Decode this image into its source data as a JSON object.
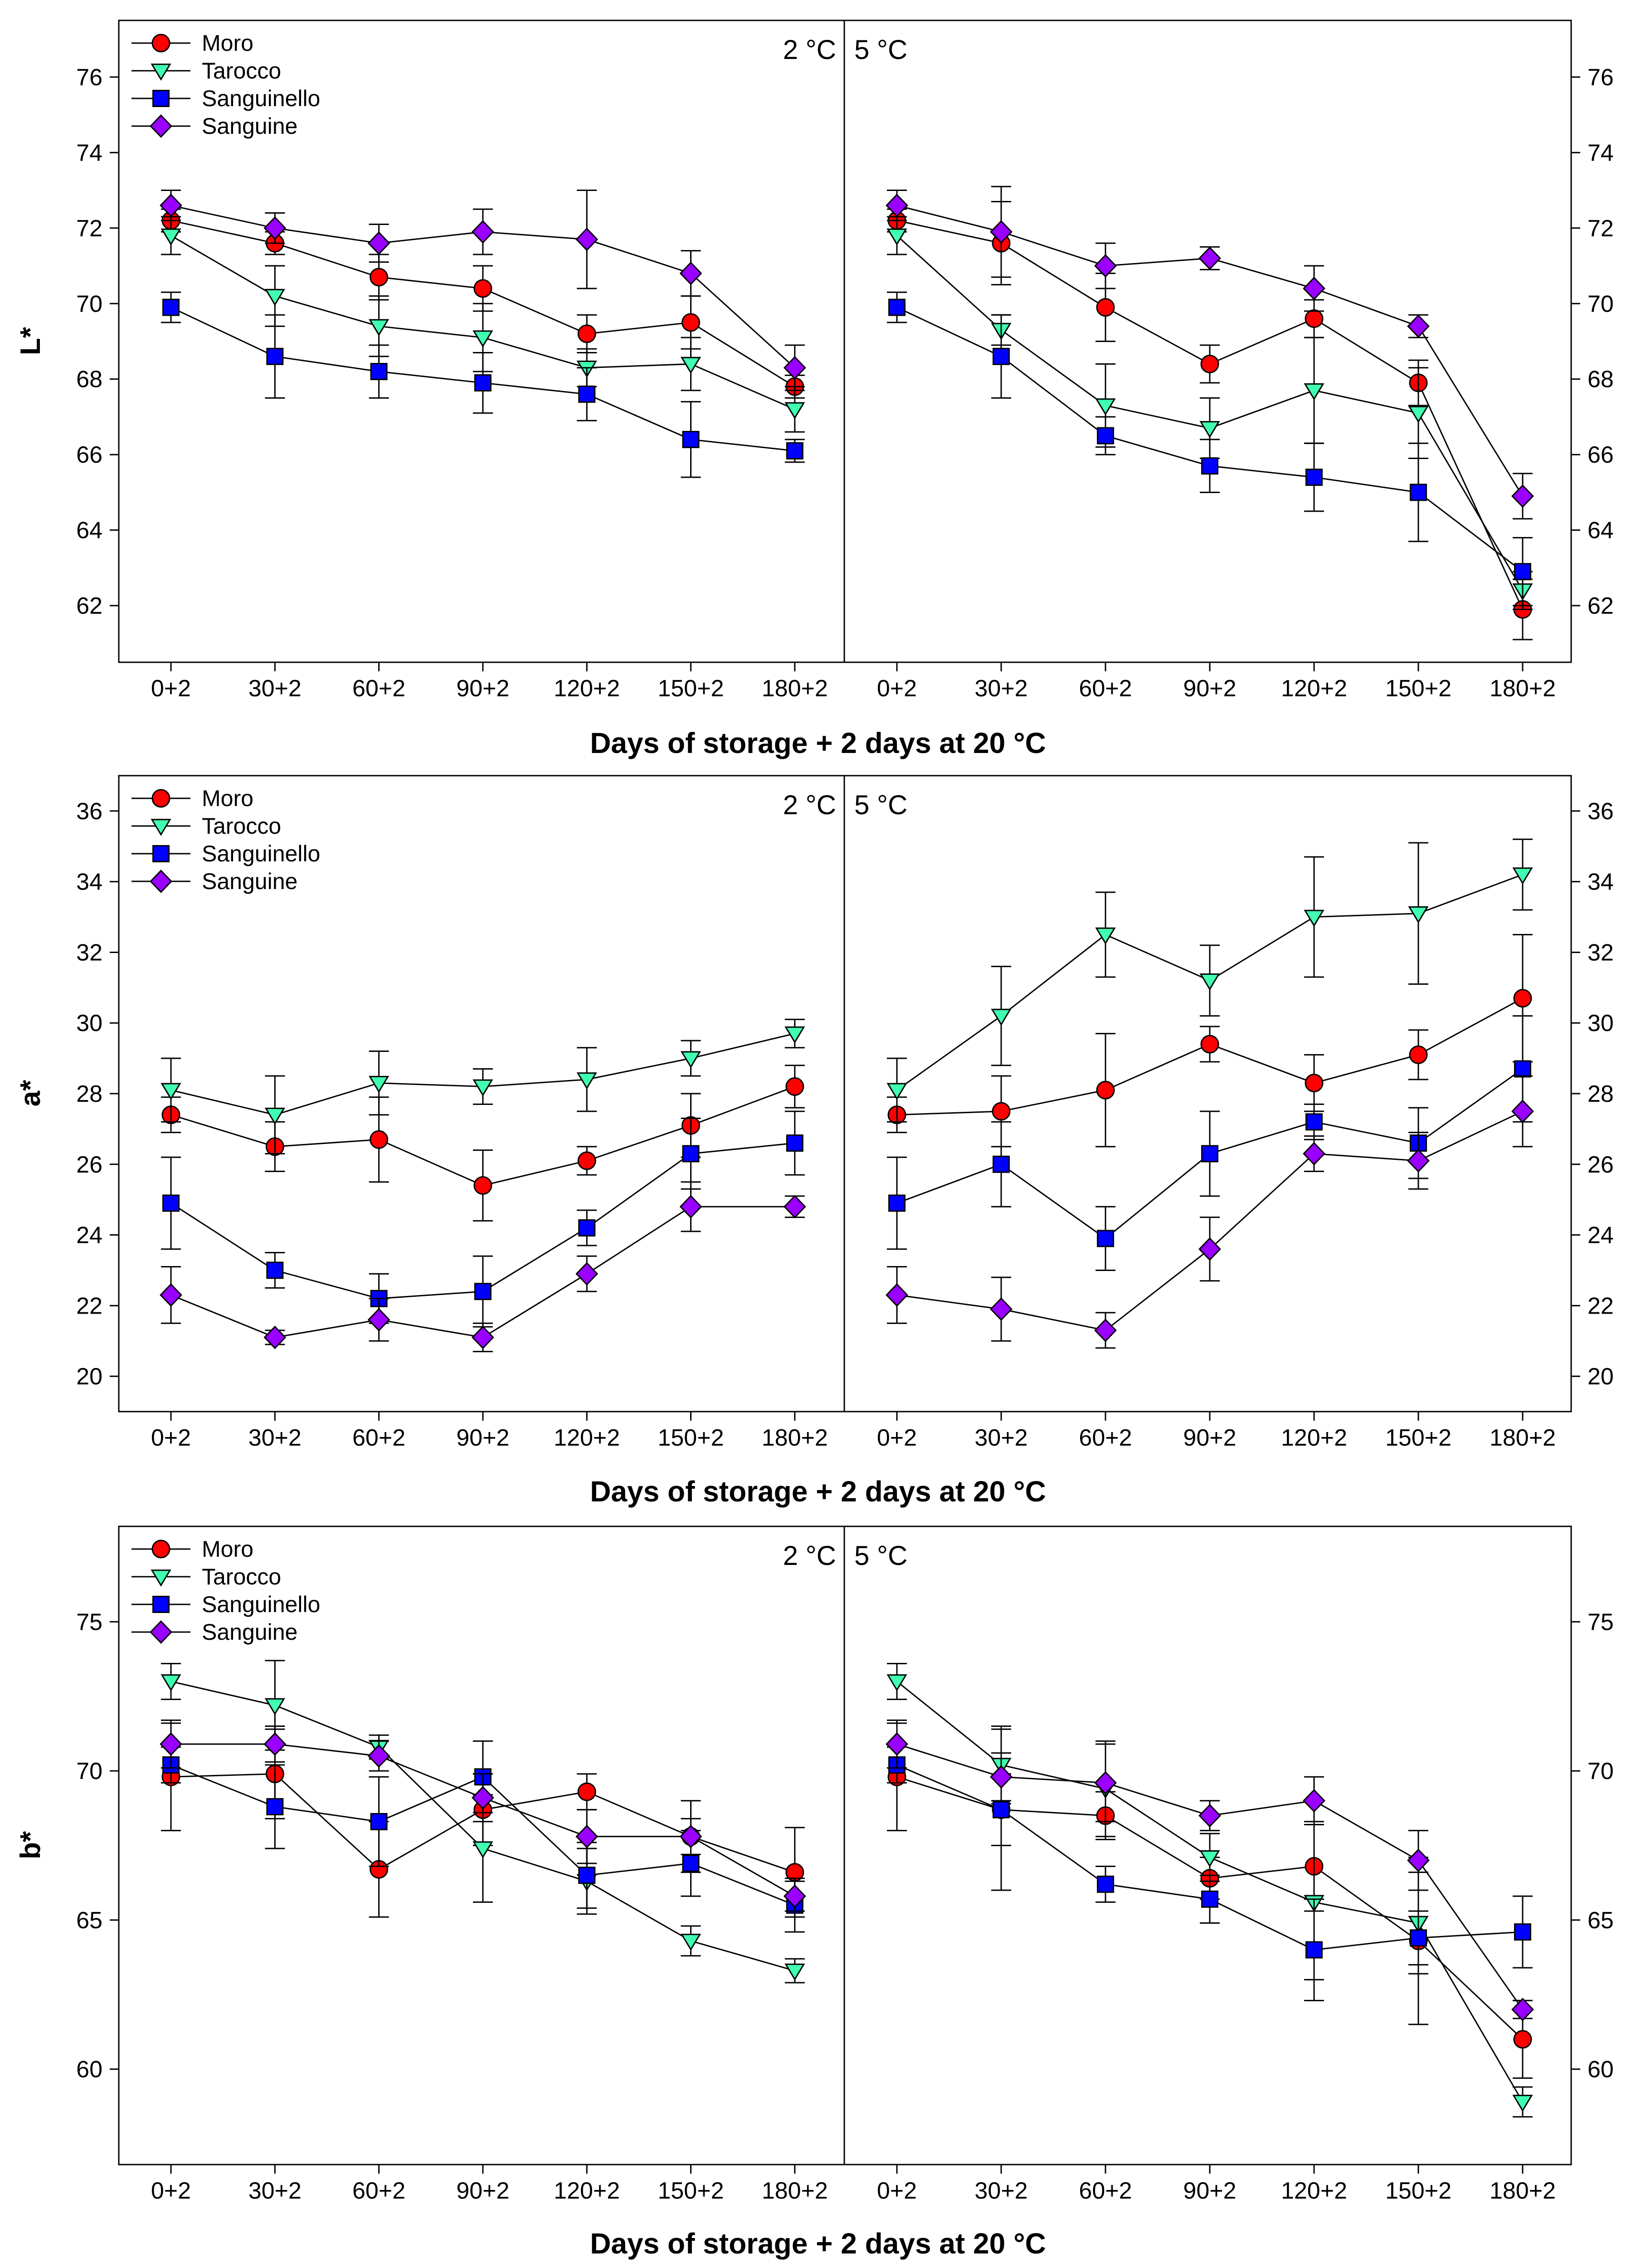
{
  "chart_data": [
    {
      "type": "line",
      "id": "L",
      "ylabel": "L*",
      "xlabel": "Days of storage + 2 days at 20 °C",
      "categories": [
        "0+2",
        "30+2",
        "60+2",
        "90+2",
        "120+2",
        "150+2",
        "180+2"
      ],
      "ylim": [
        60.5,
        77.5
      ],
      "yticks": [
        62,
        64,
        66,
        68,
        70,
        72,
        74,
        76
      ],
      "ytick_labels": [
        "62",
        "64",
        "66",
        "68",
        "70",
        "72",
        "74",
        "76"
      ],
      "panels": [
        {
          "label": "2 °C",
          "series": [
            {
              "name": "Moro",
              "values": [
                72.2,
                71.6,
                70.7,
                70.4,
                69.2,
                69.5,
                67.8
              ],
              "err": [
                0.3,
                0.3,
                0.6,
                0.6,
                0.5,
                0.7,
                0.3
              ]
            },
            {
              "name": "Tarocco",
              "values": [
                71.8,
                70.2,
                69.4,
                69.1,
                68.3,
                68.4,
                67.2
              ],
              "err": [
                0.5,
                0.8,
                0.8,
                0.9,
                0.5,
                0.7,
                0.6
              ]
            },
            {
              "name": "Sanguinello",
              "values": [
                69.9,
                68.6,
                68.2,
                67.9,
                67.6,
                66.4,
                66.1
              ],
              "err": [
                0.4,
                1.1,
                0.7,
                0.8,
                0.7,
                1.0,
                0.3
              ]
            },
            {
              "name": "Sanguine",
              "values": [
                72.6,
                72.0,
                71.6,
                71.9,
                71.7,
                70.8,
                68.3
              ],
              "err": [
                0.4,
                0.4,
                0.5,
                0.6,
                1.3,
                0.6,
                0.6
              ]
            }
          ]
        },
        {
          "label": "5 °C",
          "series": [
            {
              "name": "Moro",
              "values": [
                72.2,
                71.6,
                69.9,
                68.4,
                69.6,
                67.9,
                61.9
              ],
              "err": [
                0.3,
                1.1,
                0.9,
                0.5,
                0.5,
                0.6,
                0.8
              ]
            },
            {
              "name": "Tarocco",
              "values": [
                71.8,
                69.3,
                67.3,
                66.7,
                67.7,
                67.1,
                62.4
              ],
              "err": [
                0.5,
                0.4,
                1.1,
                0.8,
                1.4,
                1.2,
                0.5
              ]
            },
            {
              "name": "Sanguinello",
              "values": [
                69.9,
                68.6,
                66.5,
                65.7,
                65.4,
                65.0,
                62.9
              ],
              "err": [
                0.4,
                1.1,
                0.5,
                0.7,
                0.9,
                1.3,
                0.9
              ]
            },
            {
              "name": "Sanguine",
              "values": [
                72.6,
                71.9,
                71.0,
                71.2,
                70.4,
                69.4,
                64.9
              ],
              "err": [
                0.4,
                1.2,
                0.6,
                0.3,
                0.6,
                0.3,
                0.6
              ]
            }
          ]
        }
      ]
    },
    {
      "type": "line",
      "id": "a",
      "ylabel": "a*",
      "xlabel": "Days of storage + 2 days at 20 °C",
      "categories": [
        "0+2",
        "30+2",
        "60+2",
        "90+2",
        "120+2",
        "150+2",
        "180+2"
      ],
      "ylim": [
        19.0,
        37.0
      ],
      "yticks": [
        20,
        22,
        24,
        26,
        28,
        30,
        32,
        34,
        36
      ],
      "ytick_labels": [
        "20",
        "22",
        "24",
        "26",
        "28",
        "30",
        "32",
        "34",
        "36"
      ],
      "panels": [
        {
          "label": "2 °C",
          "series": [
            {
              "name": "Moro",
              "values": [
                27.4,
                26.5,
                26.7,
                25.4,
                26.1,
                27.1,
                28.2
              ],
              "err": [
                0.5,
                0.7,
                1.2,
                1.0,
                0.4,
                0.9,
                0.6
              ]
            },
            {
              "name": "Tarocco",
              "values": [
                28.1,
                27.4,
                28.3,
                28.2,
                28.4,
                29.0,
                29.7
              ],
              "err": [
                0.9,
                1.1,
                0.9,
                0.5,
                0.9,
                0.5,
                0.4
              ]
            },
            {
              "name": "Sanguinello",
              "values": [
                24.9,
                23.0,
                22.2,
                22.4,
                24.2,
                26.3,
                26.6
              ],
              "err": [
                1.3,
                0.5,
                0.7,
                1.0,
                0.5,
                1.0,
                0.9
              ]
            },
            {
              "name": "Sanguine",
              "values": [
                22.3,
                21.1,
                21.6,
                21.1,
                22.9,
                24.8,
                24.8
              ],
              "err": [
                0.8,
                0.2,
                0.6,
                0.4,
                0.5,
                0.7,
                0.3
              ]
            }
          ]
        },
        {
          "label": "5 °C",
          "series": [
            {
              "name": "Moro",
              "values": [
                27.4,
                27.5,
                28.1,
                29.4,
                28.3,
                29.1,
                30.7
              ],
              "err": [
                0.5,
                1.0,
                1.6,
                0.5,
                0.8,
                0.7,
                1.8
              ]
            },
            {
              "name": "Tarocco",
              "values": [
                28.1,
                30.2,
                32.5,
                31.2,
                33.0,
                33.1,
                34.2
              ],
              "err": [
                0.9,
                1.4,
                1.2,
                1.0,
                1.7,
                2.0,
                1.0
              ]
            },
            {
              "name": "Sanguinello",
              "values": [
                24.9,
                26.0,
                23.9,
                26.3,
                27.2,
                26.6,
                28.7
              ],
              "err": [
                1.3,
                1.2,
                0.9,
                1.2,
                0.5,
                1.0,
                1.5
              ]
            },
            {
              "name": "Sanguine",
              "values": [
                22.3,
                21.9,
                21.3,
                23.6,
                26.3,
                26.1,
                27.5
              ],
              "err": [
                0.8,
                0.9,
                0.5,
                0.9,
                0.5,
                0.8,
                1.0
              ]
            }
          ]
        }
      ]
    },
    {
      "type": "line",
      "id": "b",
      "ylabel": "b*",
      "xlabel": "Days of storage + 2 days at 20 °C",
      "categories": [
        "0+2",
        "30+2",
        "60+2",
        "90+2",
        "120+2",
        "150+2",
        "180+2"
      ],
      "ylim": [
        56.8,
        78.2
      ],
      "yticks": [
        60,
        65,
        70,
        75
      ],
      "ytick_labels": [
        "60",
        "65",
        "70",
        "75"
      ],
      "panels": [
        {
          "label": "2 °C",
          "series": [
            {
              "name": "Moro",
              "values": [
                69.8,
                69.9,
                66.7,
                68.7,
                69.3,
                67.8,
                66.6
              ],
              "err": [
                1.8,
                1.5,
                1.6,
                1.2,
                0.6,
                1.2,
                1.5
              ]
            },
            {
              "name": "Tarocco",
              "values": [
                73.0,
                72.2,
                70.8,
                67.4,
                66.3,
                64.3,
                63.3
              ],
              "err": [
                0.6,
                1.5,
                0.4,
                1.8,
                1.1,
                0.5,
                0.4
              ]
            },
            {
              "name": "Sanguinello",
              "values": [
                70.2,
                68.8,
                68.3,
                69.8,
                66.5,
                66.9,
                65.5
              ],
              "err": [
                0.6,
                1.4,
                1.5,
                1.2,
                1.1,
                1.1,
                0.9
              ]
            },
            {
              "name": "Sanguine",
              "values": [
                70.9,
                70.9,
                70.5,
                69.1,
                67.8,
                67.8,
                65.8
              ],
              "err": [
                0.8,
                0.6,
                0.5,
                0.8,
                0.9,
                0.6,
                0.5
              ]
            }
          ]
        },
        {
          "label": "5 °C",
          "series": [
            {
              "name": "Moro",
              "values": [
                69.8,
                68.7,
                68.5,
                66.4,
                66.8,
                64.3,
                61.0
              ],
              "err": [
                1.8,
                2.7,
                0.8,
                0.7,
                1.5,
                2.8,
                1.3
              ]
            },
            {
              "name": "Tarocco",
              "values": [
                73.0,
                70.2,
                69.4,
                67.1,
                65.6,
                64.9,
                58.9
              ],
              "err": [
                0.6,
                1.3,
                1.6,
                0.8,
                2.6,
                1.7,
                0.5
              ]
            },
            {
              "name": "Sanguinello",
              "values": [
                70.2,
                68.7,
                66.2,
                65.7,
                64.0,
                64.4,
                64.6
              ],
              "err": [
                0.6,
                1.2,
                0.6,
                0.8,
                1.7,
                0.9,
                1.2
              ]
            },
            {
              "name": "Sanguine",
              "values": [
                70.9,
                69.8,
                69.6,
                68.5,
                69.0,
                67.0,
                62.0
              ],
              "err": [
                0.8,
                0.8,
                1.3,
                0.5,
                0.8,
                1.0,
                0.3
              ]
            }
          ]
        }
      ]
    }
  ],
  "series_styles": [
    {
      "name": "Moro",
      "color": "#ff0000",
      "marker": "circle"
    },
    {
      "name": "Tarocco",
      "color": "#40ffb0",
      "marker": "triangle-down"
    },
    {
      "name": "Sanguinello",
      "color": "#0000ff",
      "marker": "square"
    },
    {
      "name": "Sanguine",
      "color": "#9900ff",
      "marker": "diamond"
    }
  ],
  "legend": {
    "position": "top-left",
    "labels": [
      "Moro",
      "Tarocco",
      "Sanguinello",
      "Sanguine"
    ]
  }
}
